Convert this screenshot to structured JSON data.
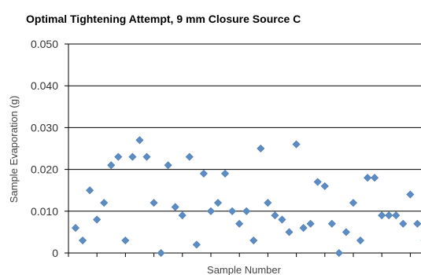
{
  "chart_data": {
    "type": "scatter",
    "title": "Optimal Tightening Attempt, 9 mm Closure  Source C",
    "xlabel": "Sample Number",
    "ylabel": "Sample Evaporation (g)",
    "ylim": [
      0,
      0.05
    ],
    "yticks": [
      "0",
      "0.010",
      "0.020",
      "0.030",
      "0.040",
      "0.050"
    ],
    "grid": true,
    "marker_color": "#5B8CC4",
    "series": [
      {
        "x": [
          1,
          2,
          3,
          4,
          5,
          6,
          7,
          8,
          9,
          10,
          11,
          12,
          13,
          14,
          15,
          16,
          17,
          18,
          19,
          20,
          21,
          22,
          23,
          24,
          25,
          26,
          27,
          28,
          29,
          30,
          31,
          32,
          33,
          34,
          35,
          36,
          37,
          38,
          39,
          40,
          41,
          42,
          43,
          44,
          45,
          46,
          47,
          48,
          49,
          50
        ],
        "values": [
          0.006,
          0.003,
          0.015,
          0.008,
          0.012,
          0.021,
          0.023,
          0.003,
          0.023,
          0.027,
          0.023,
          0.012,
          0.0,
          0.021,
          0.011,
          0.009,
          0.023,
          0.002,
          0.019,
          0.01,
          0.012,
          0.019,
          0.01,
          0.007,
          0.01,
          0.003,
          0.025,
          0.012,
          0.009,
          0.008,
          0.005,
          0.026,
          0.006,
          0.007,
          0.017,
          0.016,
          0.007,
          0.0,
          0.005,
          0.012,
          0.003,
          0.018,
          0.018,
          0.009,
          0.009,
          0.009,
          0.007,
          0.014,
          0.007,
          0.003
        ]
      }
    ]
  }
}
